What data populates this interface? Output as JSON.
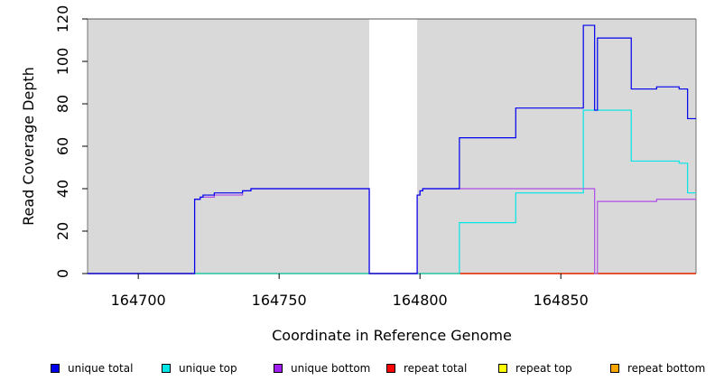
{
  "chart_data": {
    "type": "line",
    "step": true,
    "title": "",
    "xlabel": "Coordinate in Reference Genome",
    "ylabel": "Read Coverage Depth",
    "xlim": [
      164682,
      164898
    ],
    "ylim": [
      0,
      120
    ],
    "x_ticks": [
      164700,
      164750,
      164800,
      164850
    ],
    "x_tick_labels": [
      "164700",
      "164750",
      "164800",
      "164850"
    ],
    "y_ticks": [
      0,
      20,
      40,
      60,
      80,
      100,
      120
    ],
    "y_tick_labels": [
      "0",
      "20",
      "40",
      "60",
      "80",
      "100",
      "120"
    ],
    "shaded_regions": [
      [
        164682,
        164782
      ],
      [
        164799,
        164898
      ]
    ],
    "background_color": "#d9d9d9",
    "series": [
      {
        "name": "unique total",
        "color": "#0000ee",
        "x": [
          164682,
          164720,
          164721,
          164722,
          164723,
          164727,
          164737,
          164740,
          164782,
          164799,
          164800,
          164801,
          164814,
          164834,
          164858,
          164862,
          164863,
          164875,
          164884,
          164892,
          164895
        ],
        "y": [
          0,
          35,
          35,
          36,
          37,
          38,
          39,
          40,
          0,
          37,
          39,
          40,
          64,
          78,
          117,
          77,
          111,
          87,
          88,
          87,
          73
        ]
      },
      {
        "name": "unique top",
        "color": "#00e5e5",
        "x": [
          164682,
          164814,
          164834,
          164858,
          164875,
          164892,
          164895
        ],
        "y": [
          0,
          24,
          38,
          77,
          53,
          52,
          38
        ]
      },
      {
        "name": "unique bottom",
        "color": "#b04ee8",
        "x": [
          164682,
          164720,
          164722,
          164727,
          164737,
          164740,
          164782,
          164799,
          164800,
          164801,
          164862,
          164863,
          164884
        ],
        "y": [
          0,
          35,
          36,
          37,
          39,
          40,
          0,
          37,
          39,
          40,
          0,
          34,
          35
        ]
      },
      {
        "name": "repeat total",
        "color": "#e00000",
        "x": [
          164682
        ],
        "y": [
          0
        ]
      },
      {
        "name": "repeat top",
        "color": "#eeee00",
        "x": [
          164682
        ],
        "y": [
          0
        ]
      },
      {
        "name": "repeat bottom",
        "color": "#f0a000",
        "x": [
          164682
        ],
        "y": [
          0
        ]
      }
    ],
    "legend_position": "bottom"
  },
  "legend": [
    {
      "label": "unique total",
      "color": "#0000ee"
    },
    {
      "label": "unique top",
      "color": "#00e5e5"
    },
    {
      "label": "unique bottom",
      "color": "#a020f0"
    },
    {
      "label": "repeat total",
      "color": "#ff0000"
    },
    {
      "label": "repeat top",
      "color": "#ffff00"
    },
    {
      "label": "repeat bottom",
      "color": "#ffa500"
    }
  ]
}
